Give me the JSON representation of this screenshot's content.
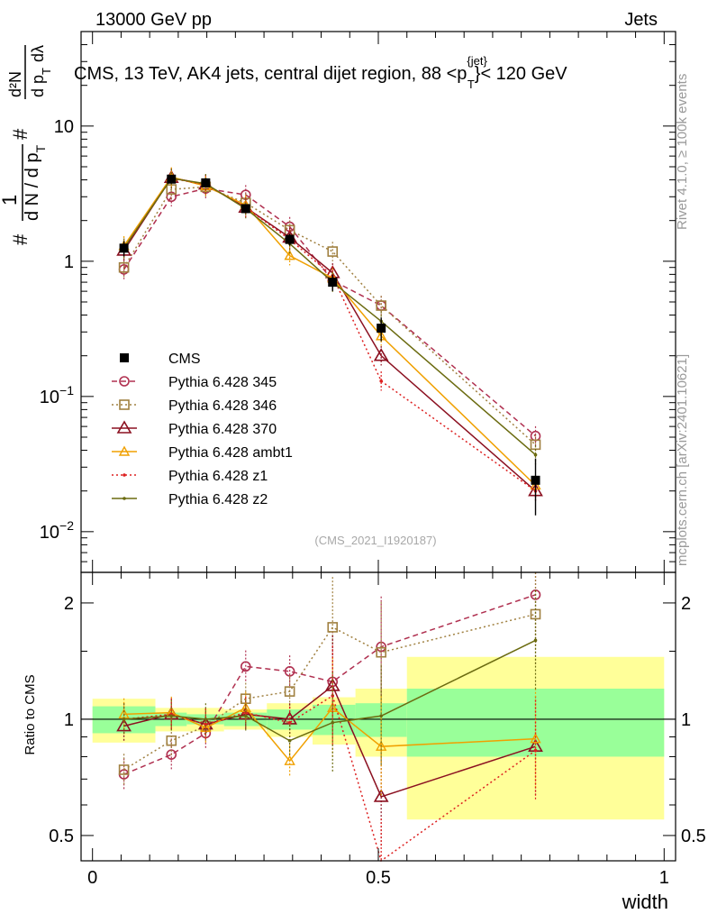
{
  "header": {
    "left": "13000 GeV pp",
    "right": "Jets",
    "title": "CMS, 13 TeV, AK4 jets, central dijet region, 88 <p",
    "title_sup": "{jet}",
    "title_sub": "T",
    "title_tail": "}< 120 GeV"
  },
  "side": {
    "rivet": "Rivet 4.1.0, ≥ 100k events",
    "mcplots": "mcplots.cern.ch [arXiv:2401.10621]"
  },
  "watermark": "(CMS_2021_I1920187)",
  "ylabel": {
    "hash": "#",
    "one": "1",
    "dn": "d N / d p",
    "d2n": "d²N",
    "dpt": "d p",
    "dlambda": "dλ",
    "sub_t": "T"
  },
  "ratio_label": "Ratio to CMS",
  "chart_data": {
    "type": "line",
    "xlabel": "width",
    "xlim": [
      -0.02,
      1.02
    ],
    "main": {
      "yscale": "log",
      "ylim": [
        0.005,
        50
      ],
      "ytick_labels": [
        {
          "v": 0.01,
          "base": "10",
          "exp": "−2"
        },
        {
          "v": 0.1,
          "base": "10",
          "exp": "−1"
        },
        {
          "v": 1,
          "base": "1",
          "exp": ""
        },
        {
          "v": 10,
          "base": "10",
          "exp": ""
        }
      ]
    },
    "ratio": {
      "yscale": "log",
      "ylim": [
        0.43,
        2.4
      ],
      "ytick_labels": [
        {
          "v": 0.5,
          "label": "0.5"
        },
        {
          "v": 1,
          "label": "1"
        },
        {
          "v": 2,
          "label": "2"
        }
      ]
    },
    "xtick_labels": [
      {
        "v": 0,
        "label": "0"
      },
      {
        "v": 0.5,
        "label": "0.5"
      },
      {
        "v": 1,
        "label": "1"
      }
    ],
    "bins": [
      [
        0,
        0.11
      ],
      [
        0.11,
        0.165
      ],
      [
        0.165,
        0.23
      ],
      [
        0.23,
        0.305
      ],
      [
        0.305,
        0.385
      ],
      [
        0.385,
        0.46
      ],
      [
        0.46,
        0.55
      ],
      [
        0.55,
        1.0
      ]
    ],
    "x": [
      0.055,
      0.138,
      0.198,
      0.268,
      0.345,
      0.42,
      0.505,
      0.775
    ],
    "cms": {
      "name": "CMS",
      "values": [
        1.25,
        4.05,
        3.8,
        2.45,
        1.45,
        0.7,
        0.32,
        0.024
      ],
      "band_green": [
        0.08,
        0.04,
        0.03,
        0.04,
        0.06,
        0.09,
        0.1,
        0.2
      ],
      "band_yellow": [
        0.13,
        0.07,
        0.07,
        0.06,
        0.1,
        0.14,
        0.2,
        0.45
      ]
    },
    "series": [
      {
        "name": "Pythia 6.428 345",
        "color": "#b03050",
        "dash": "6,4",
        "marker": "circle",
        "values": [
          0.87,
          3.0,
          3.45,
          3.1,
          1.8,
          0.72,
          0.47,
          0.051
        ],
        "ratio": [
          0.72,
          0.81,
          0.92,
          1.37,
          1.33,
          1.25,
          1.54,
          2.1
        ]
      },
      {
        "name": "Pythia 6.428 346",
        "color": "#a08040",
        "dash": "2,3",
        "marker": "square",
        "values": [
          0.9,
          3.4,
          3.55,
          2.7,
          1.7,
          1.18,
          0.47,
          0.044
        ],
        "ratio": [
          0.74,
          0.88,
          0.96,
          1.13,
          1.18,
          1.73,
          1.49,
          1.87
        ]
      },
      {
        "name": "Pythia 6.428 370",
        "color": "#8b1020",
        "dash": "",
        "marker": "triangle",
        "values": [
          1.2,
          4.15,
          3.7,
          2.5,
          1.5,
          0.82,
          0.2,
          0.02
        ],
        "ratio": [
          0.96,
          1.03,
          0.97,
          1.03,
          1.0,
          1.22,
          0.63,
          0.85
        ]
      },
      {
        "name": "Pythia 6.428 ambt1",
        "color": "#f0a000",
        "dash": "",
        "marker": "smalltri",
        "values": [
          1.3,
          4.2,
          3.6,
          2.6,
          1.1,
          0.75,
          0.28,
          0.022
        ],
        "ratio": [
          1.03,
          1.04,
          0.95,
          1.07,
          0.78,
          1.07,
          0.85,
          0.89
        ]
      },
      {
        "name": "Pythia 6.428 z1",
        "color": "#dd2020",
        "dash": "2,3",
        "marker": "dot",
        "values": [
          1.25,
          4.1,
          3.7,
          2.5,
          1.45,
          0.78,
          0.13,
          0.02
        ],
        "ratio": [
          1.0,
          1.03,
          0.97,
          1.04,
          0.98,
          1.15,
          0.41,
          0.83
        ]
      },
      {
        "name": "Pythia 6.428 z2",
        "color": "#6b6b10",
        "dash": "",
        "marker": "dot",
        "values": [
          1.25,
          4.1,
          3.75,
          2.45,
          1.35,
          0.7,
          0.36,
          0.037
        ],
        "ratio": [
          1.0,
          1.02,
          1.0,
          1.02,
          0.88,
          0.98,
          1.02,
          1.6
        ]
      }
    ]
  }
}
